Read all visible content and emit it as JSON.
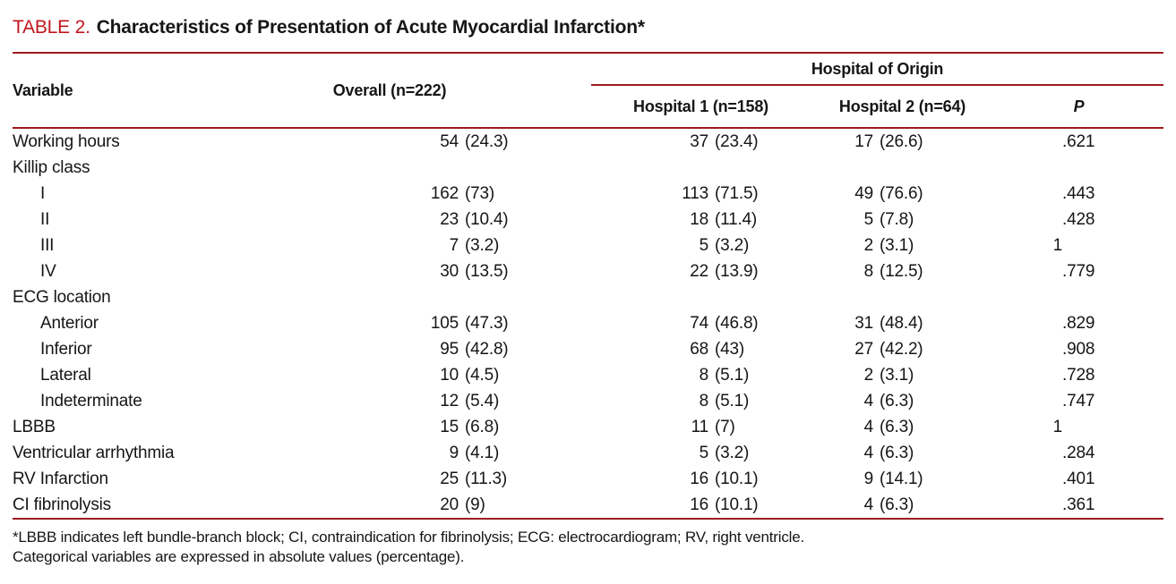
{
  "colors": {
    "title_red": "#c0171e",
    "rule_red": "#9c1b1f"
  },
  "title": {
    "label": "TABLE 2.",
    "text": "Characteristics of Presentation of Acute Myocardial Infarction*"
  },
  "table": {
    "group_header": "Hospital of Origin",
    "columns": {
      "variable": "Variable",
      "overall": "Overall (n=222)",
      "hospital1": "Hospital 1 (n=158)",
      "hospital2": "Hospital 2 (n=64)",
      "p": "P"
    },
    "rows": [
      {
        "label": "Working hours",
        "indent": false,
        "o": {
          "n": "54",
          "p": "(24.3)"
        },
        "h1": {
          "n": "37",
          "p": "(23.4)"
        },
        "h2": {
          "n": "17",
          "p": "(26.6)"
        },
        "pv": {
          "i": "",
          "f": ".621"
        }
      },
      {
        "label": "Killip class",
        "indent": false,
        "o": {
          "n": "",
          "p": ""
        },
        "h1": {
          "n": "",
          "p": ""
        },
        "h2": {
          "n": "",
          "p": ""
        },
        "pv": {
          "i": "",
          "f": ""
        }
      },
      {
        "label": "I",
        "indent": true,
        "o": {
          "n": "162",
          "p": "(73)"
        },
        "h1": {
          "n": "113",
          "p": "(71.5)"
        },
        "h2": {
          "n": "49",
          "p": "(76.6)"
        },
        "pv": {
          "i": "",
          "f": ".443"
        }
      },
      {
        "label": "II",
        "indent": true,
        "o": {
          "n": "23",
          "p": "(10.4)"
        },
        "h1": {
          "n": "18",
          "p": "(11.4)"
        },
        "h2": {
          "n": "5",
          "p": "(7.8)"
        },
        "pv": {
          "i": "",
          "f": ".428"
        }
      },
      {
        "label": "III",
        "indent": true,
        "o": {
          "n": "7",
          "p": "(3.2)"
        },
        "h1": {
          "n": "5",
          "p": "(3.2)"
        },
        "h2": {
          "n": "2",
          "p": "(3.1)"
        },
        "pv": {
          "i": "1",
          "f": ""
        }
      },
      {
        "label": "IV",
        "indent": true,
        "o": {
          "n": "30",
          "p": "(13.5)"
        },
        "h1": {
          "n": "22",
          "p": "(13.9)"
        },
        "h2": {
          "n": "8",
          "p": "(12.5)"
        },
        "pv": {
          "i": "",
          "f": ".779"
        }
      },
      {
        "label": "ECG location",
        "indent": false,
        "o": {
          "n": "",
          "p": ""
        },
        "h1": {
          "n": "",
          "p": ""
        },
        "h2": {
          "n": "",
          "p": ""
        },
        "pv": {
          "i": "",
          "f": ""
        }
      },
      {
        "label": "Anterior",
        "indent": true,
        "o": {
          "n": "105",
          "p": "(47.3)"
        },
        "h1": {
          "n": "74",
          "p": "(46.8)"
        },
        "h2": {
          "n": "31",
          "p": "(48.4)"
        },
        "pv": {
          "i": "",
          "f": ".829"
        }
      },
      {
        "label": "Inferior",
        "indent": true,
        "o": {
          "n": "95",
          "p": "(42.8)"
        },
        "h1": {
          "n": "68",
          "p": "(43)"
        },
        "h2": {
          "n": "27",
          "p": "(42.2)"
        },
        "pv": {
          "i": "",
          "f": ".908"
        }
      },
      {
        "label": "Lateral",
        "indent": true,
        "o": {
          "n": "10",
          "p": "(4.5)"
        },
        "h1": {
          "n": "8",
          "p": "(5.1)"
        },
        "h2": {
          "n": "2",
          "p": "(3.1)"
        },
        "pv": {
          "i": "",
          "f": ".728"
        }
      },
      {
        "label": "Indeterminate",
        "indent": true,
        "o": {
          "n": "12",
          "p": "(5.4)"
        },
        "h1": {
          "n": "8",
          "p": "(5.1)"
        },
        "h2": {
          "n": "4",
          "p": "(6.3)"
        },
        "pv": {
          "i": "",
          "f": ".747"
        }
      },
      {
        "label": "LBBB",
        "indent": false,
        "o": {
          "n": "15",
          "p": "(6.8)"
        },
        "h1": {
          "n": "11",
          "p": "(7)"
        },
        "h2": {
          "n": "4",
          "p": "(6.3)"
        },
        "pv": {
          "i": "1",
          "f": ""
        }
      },
      {
        "label": "Ventricular arrhythmia",
        "indent": false,
        "o": {
          "n": "9",
          "p": "(4.1)"
        },
        "h1": {
          "n": "5",
          "p": "(3.2)"
        },
        "h2": {
          "n": "4",
          "p": "(6.3)"
        },
        "pv": {
          "i": "",
          "f": ".284"
        }
      },
      {
        "label": "RV Infarction",
        "indent": false,
        "o": {
          "n": "25",
          "p": "(11.3)"
        },
        "h1": {
          "n": "16",
          "p": "(10.1)"
        },
        "h2": {
          "n": "9",
          "p": "(14.1)"
        },
        "pv": {
          "i": "",
          "f": ".401"
        }
      },
      {
        "label": "CI fibrinolysis",
        "indent": false,
        "o": {
          "n": "20",
          "p": "(9)"
        },
        "h1": {
          "n": "16",
          "p": "(10.1)"
        },
        "h2": {
          "n": "4",
          "p": "(6.3)"
        },
        "pv": {
          "i": "",
          "f": ".361"
        }
      }
    ]
  },
  "footnotes": [
    "*LBBB indicates left bundle-branch block; CI, contraindication for fibrinolysis; ECG: electrocardiogram; RV, right ventricle.",
    "Categorical variables are expressed in absolute values (percentage)."
  ]
}
